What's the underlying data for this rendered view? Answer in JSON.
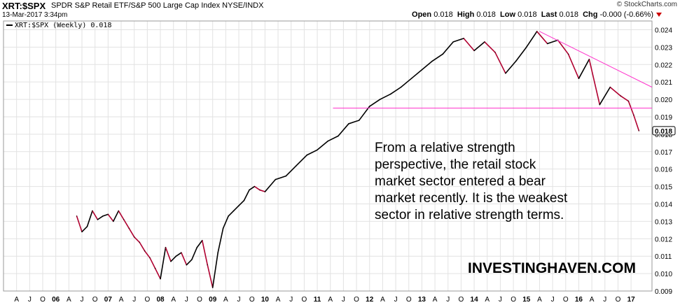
{
  "header": {
    "symbol": "XRT:$SPX",
    "description": "SPDR S&P Retail ETF/S&P 500 Large Cap Index  NYSE/INDX",
    "date": "13-Mar-2017 3:34pm",
    "copyright": "© StockCharts.com",
    "open_label": "Open",
    "open_value": "0.018",
    "high_label": "High",
    "high_value": "0.018",
    "low_label": "Low",
    "low_value": "0.018",
    "last_label": "Last",
    "last_value": "0.018",
    "chg_label": "Chg",
    "chg_value": "-0.000 (-0.66%)",
    "chg_arrow_color": "#cc0000"
  },
  "legend": {
    "label": "XRT:$SPX (Weekly) 0.018"
  },
  "annotation": {
    "lines": [
      "From a relative strength",
      "perspective, the retail stock",
      "market sector entered a bear",
      "market recently. It is the weakest",
      "sector in relative strength terms."
    ]
  },
  "brand": "INVESTINGHAVEN.COM",
  "colors": {
    "up": "#000000",
    "down": "#b00030",
    "trendline": "#ff33cc",
    "last_badge": "#000000"
  },
  "chart_data": {
    "type": "line",
    "ylim": [
      0.009,
      0.0245
    ],
    "xlim": [
      2005.0,
      2017.4
    ],
    "ytick_labels": [
      "0.024",
      "0.023",
      "0.022",
      "0.021",
      "0.020",
      "0.019",
      "0.018",
      "0.017",
      "0.016",
      "0.015",
      "0.014",
      "0.013",
      "0.012",
      "0.011",
      "0.010",
      "0.009"
    ],
    "ytick_values": [
      0.024,
      0.023,
      0.022,
      0.021,
      0.02,
      0.019,
      0.018,
      0.017,
      0.016,
      0.015,
      0.014,
      0.013,
      0.012,
      0.011,
      0.01,
      0.009
    ],
    "xtick_labels": [
      "A",
      "J",
      "O",
      "06",
      "A",
      "J",
      "O",
      "07",
      "A",
      "J",
      "O",
      "08",
      "A",
      "J",
      "O",
      "09",
      "A",
      "J",
      "O",
      "10",
      "A",
      "J",
      "O",
      "11",
      "A",
      "J",
      "O",
      "12",
      "A",
      "J",
      "O",
      "13",
      "A",
      "J",
      "O",
      "14",
      "A",
      "J",
      "O",
      "15",
      "A",
      "J",
      "O",
      "16",
      "A",
      "J",
      "O",
      "17"
    ],
    "last_value_label": "0.018",
    "series": [
      {
        "x": [
          2006.4,
          2006.5,
          2006.6,
          2006.7,
          2006.8,
          2006.9,
          2007.0,
          2007.1,
          2007.2,
          2007.3,
          2007.4,
          2007.5,
          2007.6,
          2007.7,
          2007.8,
          2007.9,
          2008.0,
          2008.1,
          2008.2,
          2008.3,
          2008.4,
          2008.5,
          2008.6,
          2008.7,
          2008.8,
          2008.9,
          2009.0,
          2009.1,
          2009.2,
          2009.3,
          2009.4,
          2009.5,
          2009.6,
          2009.7,
          2009.8,
          2009.9,
          2010.0,
          2010.2,
          2010.4,
          2010.6,
          2010.8,
          2011.0,
          2011.2,
          2011.4,
          2011.6,
          2011.8,
          2012.0,
          2012.2,
          2012.4,
          2012.6,
          2012.8,
          2013.0,
          2013.2,
          2013.4,
          2013.6,
          2013.8,
          2014.0,
          2014.2,
          2014.4,
          2014.6,
          2014.8,
          2015.0,
          2015.2,
          2015.4,
          2015.6,
          2015.8,
          2016.0,
          2016.2,
          2016.4,
          2016.6,
          2016.8,
          2016.95,
          2017.05,
          2017.15
        ],
        "y": [
          0.0133,
          0.0124,
          0.0127,
          0.0136,
          0.0131,
          0.0133,
          0.0134,
          0.013,
          0.0136,
          0.0131,
          0.0126,
          0.0121,
          0.0118,
          0.0113,
          0.0109,
          0.0103,
          0.0097,
          0.0115,
          0.0107,
          0.011,
          0.0112,
          0.0105,
          0.0108,
          0.0115,
          0.0119,
          0.0105,
          0.0092,
          0.0112,
          0.0126,
          0.0133,
          0.0136,
          0.0139,
          0.0142,
          0.0148,
          0.015,
          0.0148,
          0.0147,
          0.0154,
          0.0156,
          0.0162,
          0.0168,
          0.0171,
          0.0176,
          0.0179,
          0.0186,
          0.0188,
          0.0196,
          0.02,
          0.0203,
          0.0207,
          0.0212,
          0.0217,
          0.0222,
          0.0226,
          0.0233,
          0.0235,
          0.0228,
          0.0233,
          0.0227,
          0.0215,
          0.0222,
          0.023,
          0.0239,
          0.0232,
          0.0234,
          0.0226,
          0.0212,
          0.0223,
          0.0197,
          0.0207,
          0.0202,
          0.0199,
          0.0191,
          0.0182
        ]
      }
    ],
    "trendlines": [
      {
        "x": [
          2015.25,
          2017.4
        ],
        "y": [
          0.0239,
          0.0207
        ]
      },
      {
        "x": [
          2011.3,
          2017.4
        ],
        "y": [
          0.0195,
          0.0195
        ]
      }
    ]
  }
}
